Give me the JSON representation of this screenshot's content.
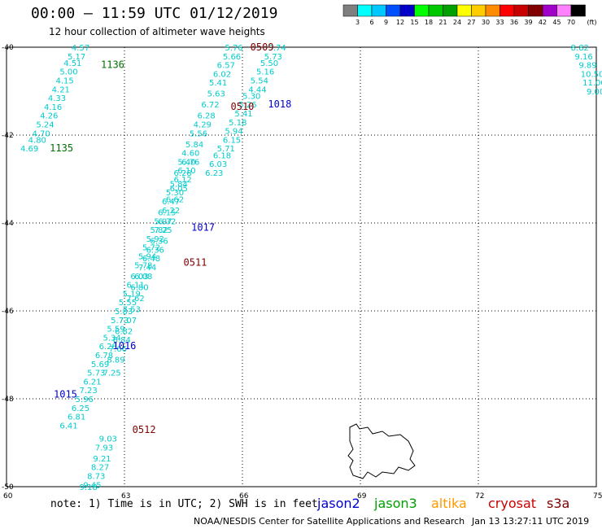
{
  "header": {
    "title": "00:00 – 11:59 UTC 01/12/2019",
    "subtitle": "12 hour collection of altimeter wave heights"
  },
  "footer": {
    "note": "note: 1) Time is in UTC; 2) SWH is in feet",
    "credit": "NOAA/NESDIS Center for Satellite Applications and Research",
    "timestamp": "Jan 13 13:27:11 UTC 2019"
  },
  "satellites": [
    {
      "name": "jason2",
      "color": "#0000d0"
    },
    {
      "name": "jason3",
      "color": "#00a000"
    },
    {
      "name": "altika",
      "color": "#ff9900"
    },
    {
      "name": "cryosat",
      "color": "#cc0000"
    },
    {
      "name": "s3a",
      "color": "#800000"
    }
  ],
  "colorbar": {
    "unit": "(ft)",
    "ticks": [
      "3",
      "6",
      "9",
      "12",
      "15",
      "18",
      "21",
      "24",
      "27",
      "30",
      "33",
      "36",
      "39",
      "42",
      "45",
      "70"
    ],
    "colors": [
      "#7f7f7f",
      "#00ffff",
      "#00c8ff",
      "#0050ff",
      "#0000c8",
      "#00ff00",
      "#00c800",
      "#00a000",
      "#ffff00",
      "#ffcc00",
      "#ff8c00",
      "#ff0000",
      "#c80000",
      "#800000",
      "#a000c8",
      "#ff80ff",
      "#000000"
    ]
  },
  "chart_data": {
    "type": "scatter",
    "xlim": [
      60,
      75
    ],
    "ylim": [
      -50,
      -40
    ],
    "x_ticks": [
      60,
      63,
      66,
      69,
      72,
      75
    ],
    "y_ticks": [
      -40,
      -42,
      -44,
      -46,
      -48,
      -50
    ],
    "x_tick_labels": [
      "60",
      "63",
      "66",
      "69",
      "72",
      "75"
    ],
    "y_tick_labels": [
      "-40",
      "-42",
      "-44",
      "-46",
      "-48",
      "-50"
    ],
    "grid": true,
    "swh_color": "#00cccc",
    "tracks": [
      {
        "pass": "1136",
        "color": "#007000",
        "label_at": [
          62.4,
          -40.4
        ],
        "points": [
          [
            61.9,
            -40.0,
            4.57
          ],
          [
            61.8,
            -40.2,
            5.17
          ],
          [
            61.7,
            -40.35,
            4.51
          ],
          [
            61.6,
            -40.55,
            5.0
          ],
          [
            61.5,
            -40.75,
            4.15
          ],
          [
            61.4,
            -40.95,
            4.21
          ],
          [
            61.3,
            -41.15,
            4.33
          ],
          [
            61.2,
            -41.35,
            4.16
          ],
          [
            61.1,
            -41.55,
            4.26
          ],
          [
            61.0,
            -41.75,
            5.24
          ],
          [
            60.9,
            -41.95,
            4.7
          ],
          [
            60.8,
            -42.1,
            4.8
          ],
          [
            60.6,
            -42.3,
            4.69
          ]
        ]
      },
      {
        "pass": "1135",
        "color": "#007000",
        "label_at": [
          61.1,
          -42.3
        ],
        "points": []
      },
      {
        "pass": "0509",
        "color": "#800000",
        "label_at": [
          66.2,
          -40.0
        ],
        "points": [
          [
            66.9,
            -40.0,
            5.74
          ],
          [
            66.8,
            -40.2,
            5.73
          ],
          [
            66.7,
            -40.35,
            5.5
          ],
          [
            66.6,
            -40.55,
            5.16
          ],
          [
            66.45,
            -40.75,
            5.54
          ],
          [
            66.4,
            -40.95,
            4.44
          ],
          [
            66.25,
            -41.1,
            5.3
          ],
          [
            66.15,
            -41.3,
            5.26
          ],
          [
            66.05,
            -41.5,
            5.41
          ],
          [
            65.9,
            -41.7,
            5.18
          ],
          [
            65.8,
            -41.9,
            5.94
          ],
          [
            65.75,
            -42.1,
            6.15
          ],
          [
            65.6,
            -42.3,
            5.71
          ],
          [
            65.5,
            -42.45,
            6.18
          ],
          [
            65.4,
            -42.65,
            6.03
          ],
          [
            65.3,
            -42.85,
            6.23
          ]
        ]
      },
      {
        "pass": "0510",
        "color": "#800000",
        "label_at": [
          65.7,
          -41.35
        ],
        "points": [
          [
            65.8,
            -40.0,
            5.76
          ],
          [
            65.75,
            -40.2,
            5.66
          ],
          [
            65.6,
            -40.4,
            6.57
          ],
          [
            65.5,
            -40.6,
            6.02
          ],
          [
            65.4,
            -40.8,
            5.41
          ],
          [
            65.35,
            -41.05,
            5.63
          ],
          [
            65.2,
            -41.3,
            6.72
          ],
          [
            65.1,
            -41.55,
            6.28
          ],
          [
            65.0,
            -41.75,
            4.29
          ],
          [
            64.9,
            -41.95,
            5.56
          ],
          [
            64.8,
            -42.2,
            5.84
          ],
          [
            64.7,
            -42.4,
            4.6
          ],
          [
            64.6,
            -42.6,
            5.4
          ],
          [
            64.5,
            -42.85,
            6.28
          ],
          [
            64.4,
            -43.1,
            5.84
          ],
          [
            64.3,
            -43.3,
            5.3
          ],
          [
            64.2,
            -43.5,
            6.47
          ],
          [
            64.1,
            -43.75,
            6.15
          ],
          [
            64.0,
            -43.95,
            5.97
          ],
          [
            63.9,
            -44.15,
            5.82
          ],
          [
            63.8,
            -44.35,
            5.92
          ],
          [
            63.7,
            -44.55,
            5.72
          ],
          [
            63.6,
            -44.75,
            5.94
          ],
          [
            63.5,
            -44.95,
            5.78
          ],
          [
            63.4,
            -45.2,
            6.03
          ],
          [
            63.3,
            -45.4,
            6.11
          ],
          [
            63.2,
            -45.6,
            5.19
          ],
          [
            63.1,
            -45.8,
            5.55
          ],
          [
            63.0,
            -46.0,
            5.83
          ],
          [
            62.9,
            -46.2,
            5.73
          ],
          [
            62.8,
            -46.4,
            5.59
          ],
          [
            62.7,
            -46.6,
            5.34
          ],
          [
            62.6,
            -46.8,
            6.28
          ],
          [
            62.5,
            -47.0,
            6.78
          ],
          [
            62.4,
            -47.2,
            5.69
          ],
          [
            62.3,
            -47.4,
            5.73
          ],
          [
            62.2,
            -47.6,
            6.21
          ],
          [
            62.1,
            -47.8,
            7.23
          ],
          [
            62.0,
            -48.0,
            5.96
          ],
          [
            61.9,
            -48.2,
            6.25
          ],
          [
            61.8,
            -48.4,
            6.81
          ],
          [
            61.6,
            -48.6,
            6.41
          ]
        ]
      },
      {
        "pass": "1018",
        "color": "#0000d0",
        "label_at": [
          66.65,
          -41.3
        ],
        "points": []
      },
      {
        "pass": "1017",
        "color": "#0000d0",
        "label_at": [
          64.7,
          -44.1
        ],
        "points": []
      },
      {
        "pass": "0511",
        "color": "#800000",
        "label_at": [
          64.5,
          -44.9
        ],
        "points": [
          [
            64.7,
            -42.6,
            6.76
          ],
          [
            64.6,
            -42.8,
            6.1
          ],
          [
            64.5,
            -43.0,
            6.12
          ],
          [
            64.4,
            -43.2,
            6.05
          ],
          [
            64.3,
            -43.45,
            6.62
          ],
          [
            64.2,
            -43.7,
            6.22
          ],
          [
            64.1,
            -43.95,
            6.72
          ],
          [
            64.0,
            -44.15,
            7.25
          ],
          [
            63.9,
            -44.4,
            6.36
          ],
          [
            63.8,
            -44.6,
            6.36
          ],
          [
            63.7,
            -44.8,
            6.48
          ],
          [
            63.6,
            -45.0,
            7.44
          ],
          [
            63.5,
            -45.2,
            6.08
          ],
          [
            63.4,
            -45.45,
            6.8
          ],
          [
            63.3,
            -45.7,
            7.62
          ],
          [
            63.2,
            -45.95,
            7.53
          ],
          [
            63.1,
            -46.2,
            7.07
          ],
          [
            63.0,
            -46.45,
            6.82
          ],
          [
            62.95,
            -46.65,
            6.84
          ],
          [
            62.85,
            -46.85,
            7.66
          ],
          [
            62.8,
            -47.1,
            8.89
          ],
          [
            62.7,
            -47.4,
            7.25
          ]
        ]
      },
      {
        "pass": "0512",
        "color": "#800000",
        "label_at": [
          63.2,
          -48.7
        ],
        "points": [
          [
            62.6,
            -48.9,
            9.03
          ],
          [
            62.5,
            -49.1,
            7.93
          ],
          [
            62.45,
            -49.35,
            9.21
          ],
          [
            62.4,
            -49.55,
            8.27
          ],
          [
            62.3,
            -49.75,
            8.73
          ],
          [
            62.2,
            -49.95,
            9.45
          ],
          [
            62.1,
            -50.0,
            9.18
          ]
        ]
      },
      {
        "pass": "1016",
        "color": "#0000d0",
        "label_at": [
          62.7,
          -46.8
        ],
        "points": []
      },
      {
        "pass": "1015",
        "color": "#0000d0",
        "label_at": [
          61.2,
          -47.9
        ],
        "points": []
      },
      {
        "pass": "",
        "color": "#0000d0",
        "label_at": null,
        "points": [
          [
            74.6,
            -40.0,
            8.82
          ],
          [
            74.7,
            -40.2,
            9.16
          ],
          [
            74.8,
            -40.4,
            9.89
          ],
          [
            74.85,
            -40.6,
            10.5
          ],
          [
            74.9,
            -40.8,
            11.0
          ],
          [
            75.0,
            -41.0,
            9.0
          ]
        ]
      }
    ]
  }
}
